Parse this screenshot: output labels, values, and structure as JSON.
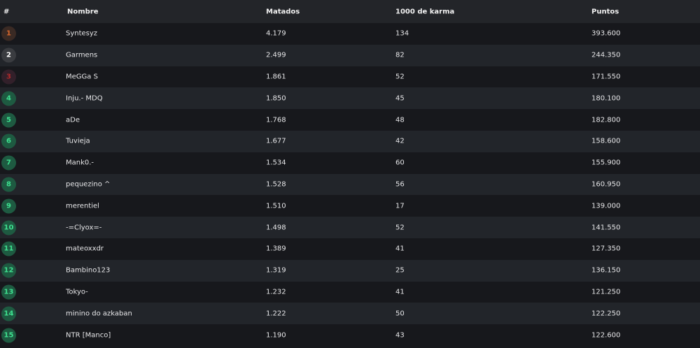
{
  "header": {
    "rank": "#",
    "name": "Nombre",
    "kills": "Matados",
    "karma": "1000 de karma",
    "points": "Puntos"
  },
  "colors": {
    "gold_bg": "#3a2a24",
    "gold_fg": "#d9682c",
    "silver_bg": "#3a3c40",
    "silver_fg": "#ffffff",
    "bronze_bg": "#32202a",
    "bronze_fg": "#b02a2a",
    "default_bg": "#1e5a41",
    "default_fg": "#3ee08f"
  },
  "rows": [
    {
      "rank": "1",
      "name": "Syntesyz",
      "kills": "4.179",
      "karma": "134",
      "points": "393.600"
    },
    {
      "rank": "2",
      "name": "Garmens",
      "kills": "2.499",
      "karma": "82",
      "points": "244.350"
    },
    {
      "rank": "3",
      "name": "MeGGa S",
      "kills": "1.861",
      "karma": "52",
      "points": "171.550"
    },
    {
      "rank": "4",
      "name": "Inju.- MDQ",
      "kills": "1.850",
      "karma": "45",
      "points": "180.100"
    },
    {
      "rank": "5",
      "name": "aDe",
      "kills": "1.768",
      "karma": "48",
      "points": "182.800"
    },
    {
      "rank": "6",
      "name": "Tuvieja",
      "kills": "1.677",
      "karma": "42",
      "points": "158.600"
    },
    {
      "rank": "7",
      "name": "Mank0.-",
      "kills": "1.534",
      "karma": "60",
      "points": "155.900"
    },
    {
      "rank": "8",
      "name": "pequezino ^",
      "kills": "1.528",
      "karma": "56",
      "points": "160.950"
    },
    {
      "rank": "9",
      "name": "merentiel",
      "kills": "1.510",
      "karma": "17",
      "points": "139.000"
    },
    {
      "rank": "10",
      "name": "-=Clyox=-",
      "kills": "1.498",
      "karma": "52",
      "points": "141.550"
    },
    {
      "rank": "11",
      "name": "mateoxxdr",
      "kills": "1.389",
      "karma": "41",
      "points": "127.350"
    },
    {
      "rank": "12",
      "name": "Bambino123",
      "kills": "1.319",
      "karma": "25",
      "points": "136.150"
    },
    {
      "rank": "13",
      "name": "Tokyo-",
      "kills": "1.232",
      "karma": "41",
      "points": "121.250"
    },
    {
      "rank": "14",
      "name": "minino do azkaban",
      "kills": "1.222",
      "karma": "50",
      "points": "122.250"
    },
    {
      "rank": "15",
      "name": "NTR [Manco]",
      "kills": "1.190",
      "karma": "43",
      "points": "122.600"
    }
  ]
}
